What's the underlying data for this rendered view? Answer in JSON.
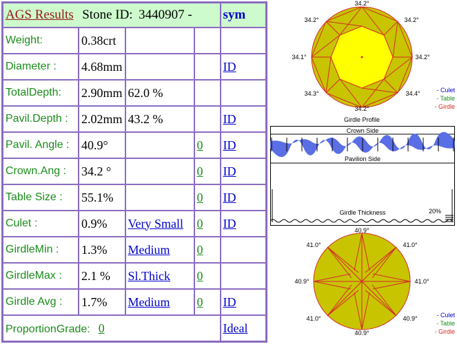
{
  "header": {
    "title": "AGS  Results",
    "stone_label": "Stone ID:",
    "stone_id": "3440907 -",
    "sym_link": "sym"
  },
  "rows": [
    {
      "label": "Weight:",
      "value": "0.38crt",
      "extra": "",
      "link": "",
      "grade": "",
      "id": ""
    },
    {
      "label": "Diameter :",
      "value": "4.68mm",
      "extra": "",
      "link": "",
      "grade": "",
      "id": "ID"
    },
    {
      "label": "TotalDepth:",
      "value": "2.90mm",
      "extra": "62.0 %",
      "link": "",
      "grade": "",
      "id": ""
    },
    {
      "label": "Pavil.Depth :",
      "value": "2.02mm",
      "extra": "43.2 %",
      "link": "",
      "grade": "",
      "id": "ID"
    },
    {
      "label": "Pavil. Angle :",
      "value": "40.9°",
      "extra": "",
      "link": "",
      "grade": "0",
      "id": "ID "
    },
    {
      "label": "Crown.Ang :",
      "value": "34.2 °",
      "extra": "",
      "link": "",
      "grade": "0",
      "id": "ID"
    },
    {
      "label": "Table Size :",
      "value": "55.1%",
      "extra": "",
      "link": "",
      "grade": "0",
      "id": "ID "
    },
    {
      "label": "Culet :",
      "value": "0.9%",
      "extra": "",
      "link": "Very Small",
      "grade": "0",
      "id": "ID "
    },
    {
      "label": "GirdleMin :",
      "value": "1.3%",
      "extra": "",
      "link": "Medium",
      "grade": "0",
      "id": ""
    },
    {
      "label": "GirdleMax :",
      "value": "2.1 %",
      "extra": "",
      "link": "Sl.Thick ",
      "grade": "0",
      "id": ""
    },
    {
      "label": "Girdle Avg :",
      "value": "1.7%",
      "extra": "",
      "link": "Medium ",
      "grade": "0 ",
      "id": "ID "
    }
  ],
  "proportion": {
    "label": "ProportionGrade:",
    "grade": "0",
    "result": "Ideal "
  },
  "crown_diagram": {
    "angles": {
      "top": "34.2°",
      "top_left": "34.2°",
      "top_right": "34.2°",
      "left": "34.1°",
      "right": "34.2°",
      "bottom_left": "34.3°",
      "bottom_right": "34.4°",
      "bottom": "34.2°"
    },
    "caption": "Girdle Profile"
  },
  "pavilion_diagram": {
    "angles": {
      "top": "40.9°",
      "top_left": "41.0°",
      "top_right": "41.0°",
      "left": "40.9°",
      "right": "41.0°",
      "bottom_left": "41.0°",
      "bottom_right": "40.9°",
      "bottom": "40.9°"
    }
  },
  "legend": {
    "culet": "- Culet",
    "table": "- Table",
    "girdle": "- Girdle"
  },
  "profile_panel": {
    "crown_side": "Crown Side",
    "pavilion_side": "Pavilion Side",
    "girdle_thickness": "Girdle Thickness",
    "percent": "20%"
  },
  "colors": {
    "facet_fill": "#c8c400",
    "table_fill": "#ffff00",
    "outline": "#d42a2a",
    "label_green": "#1a8d1a",
    "link_blue": "#0000cc",
    "border": "#8a6bc0",
    "header_bg": "#cdfbcd",
    "girdle_band": "#5a6ee6"
  }
}
